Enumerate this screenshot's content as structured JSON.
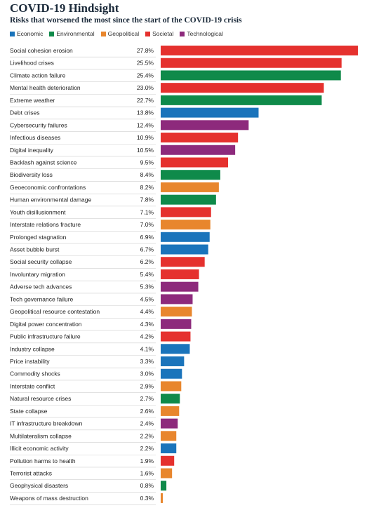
{
  "title": "COVID-19 Hindsight",
  "subtitle": "Risks that worsened the most since the start of the COVID-19 crisis",
  "colors": {
    "Economic": "#1a74bb",
    "Environmental": "#0f8a4a",
    "Geopolitical": "#e8862d",
    "Societal": "#e5312e",
    "Technological": "#8d2a7c"
  },
  "legend": [
    {
      "label": "Economic",
      "color": "#1a74bb"
    },
    {
      "label": "Environmental",
      "color": "#0f8a4a"
    },
    {
      "label": "Geopolitical",
      "color": "#e8862d"
    },
    {
      "label": "Societal",
      "color": "#e5312e"
    },
    {
      "label": "Technological",
      "color": "#8d2a7c"
    }
  ],
  "chart_data": {
    "type": "bar",
    "orientation": "horizontal",
    "title": "COVID-19 Hindsight",
    "subtitle": "Risks that worsened the most since the start of the COVID-19 crisis",
    "xlim": [
      0,
      27.8
    ],
    "grid": false,
    "legend_position": "top",
    "categories": [
      "Social cohesion erosion",
      "Livelihood crises",
      "Climate action failure",
      "Mental health deterioration",
      "Extreme weather",
      "Debt crises",
      "Cybersecurity failures",
      "Infectious diseases",
      "Digital inequality",
      "Backlash against science",
      "Biodiversity loss",
      "Geoeconomic confrontations",
      "Human environmental damage",
      "Youth disillusionment",
      "Interstate relations fracture",
      "Prolonged stagnation",
      "Asset bubble burst",
      "Social security collapse",
      "Involuntary migration",
      "Adverse tech advances",
      "Tech governance failure",
      "Geopolitical resource contestation",
      "Digital power concentration",
      "Public infrastructure failure",
      "Industry collapse",
      "Price instability",
      "Commodity shocks",
      "Interstate conflict",
      "Natural resource crises",
      "State collapse",
      "IT infrastructure breakdown",
      "Multilateralism collapse",
      "Illicit economic activity",
      "Pollution harms to health",
      "Terrorist attacks",
      "Geophysical disasters",
      "Weapons of mass destruction"
    ],
    "values": [
      27.8,
      25.5,
      25.4,
      23.0,
      22.7,
      13.8,
      12.4,
      10.9,
      10.5,
      9.5,
      8.4,
      8.2,
      7.8,
      7.1,
      7.0,
      6.9,
      6.7,
      6.2,
      5.4,
      5.3,
      4.5,
      4.4,
      4.3,
      4.2,
      4.1,
      3.3,
      3.0,
      2.9,
      2.7,
      2.6,
      2.4,
      2.2,
      2.2,
      1.9,
      1.6,
      0.8,
      0.3
    ],
    "value_labels": [
      "27.8%",
      "25.5%",
      "25.4%",
      "23.0%",
      "22.7%",
      "13.8%",
      "12.4%",
      "10.9%",
      "10.5%",
      "9.5%",
      "8.4%",
      "8.2%",
      "7.8%",
      "7.1%",
      "7.0%",
      "6.9%",
      "6.7%",
      "6.2%",
      "5.4%",
      "5.3%",
      "4.5%",
      "4.4%",
      "4.3%",
      "4.2%",
      "4.1%",
      "3.3%",
      "3.0%",
      "2.9%",
      "2.7%",
      "2.6%",
      "2.4%",
      "2.2%",
      "2.2%",
      "1.9%",
      "1.6%",
      "0.8%",
      "0.3%"
    ],
    "groups": [
      "Societal",
      "Societal",
      "Environmental",
      "Societal",
      "Environmental",
      "Economic",
      "Technological",
      "Societal",
      "Technological",
      "Societal",
      "Environmental",
      "Geopolitical",
      "Environmental",
      "Societal",
      "Geopolitical",
      "Economic",
      "Economic",
      "Societal",
      "Societal",
      "Technological",
      "Technological",
      "Geopolitical",
      "Technological",
      "Societal",
      "Economic",
      "Economic",
      "Economic",
      "Geopolitical",
      "Environmental",
      "Geopolitical",
      "Technological",
      "Geopolitical",
      "Economic",
      "Societal",
      "Geopolitical",
      "Environmental",
      "Geopolitical"
    ]
  }
}
